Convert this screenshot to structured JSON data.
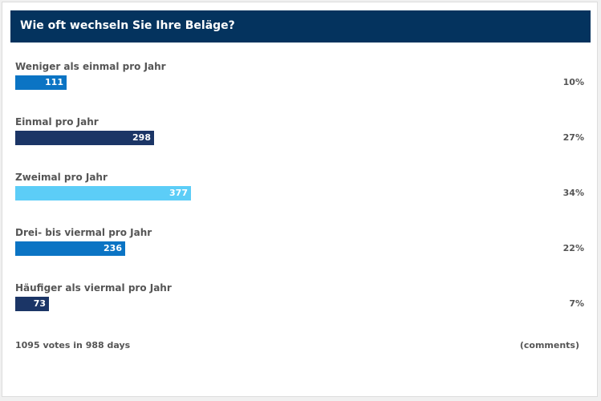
{
  "poll": {
    "question": "Wie oft wechseln Sie Ihre Beläge?",
    "footer_votes": "1095 votes in 988 days",
    "footer_comments": "(comments)"
  },
  "colors": {
    "header_bg": "#04335e",
    "bar_blue": "#0b74c4",
    "bar_navy": "#1b3566",
    "bar_light": "#5ccdf7"
  },
  "chart_data": {
    "type": "bar",
    "orientation": "horizontal",
    "title": "Wie oft wechseln Sie Ihre Beläge?",
    "xlabel": "",
    "ylabel": "",
    "categories": [
      "Weniger als einmal pro Jahr",
      "Einmal pro Jahr",
      "Zweimal pro Jahr",
      "Drei- bis viermal pro Jahr",
      "Häufiger als viermal pro Jahr"
    ],
    "values": [
      111,
      298,
      377,
      236,
      73
    ],
    "percents": [
      "10%",
      "27%",
      "34%",
      "22%",
      "7%"
    ],
    "bar_colors": [
      "#0b74c4",
      "#1b3566",
      "#5ccdf7",
      "#0b74c4",
      "#1b3566"
    ],
    "xlim": [
      0,
      1300
    ]
  }
}
